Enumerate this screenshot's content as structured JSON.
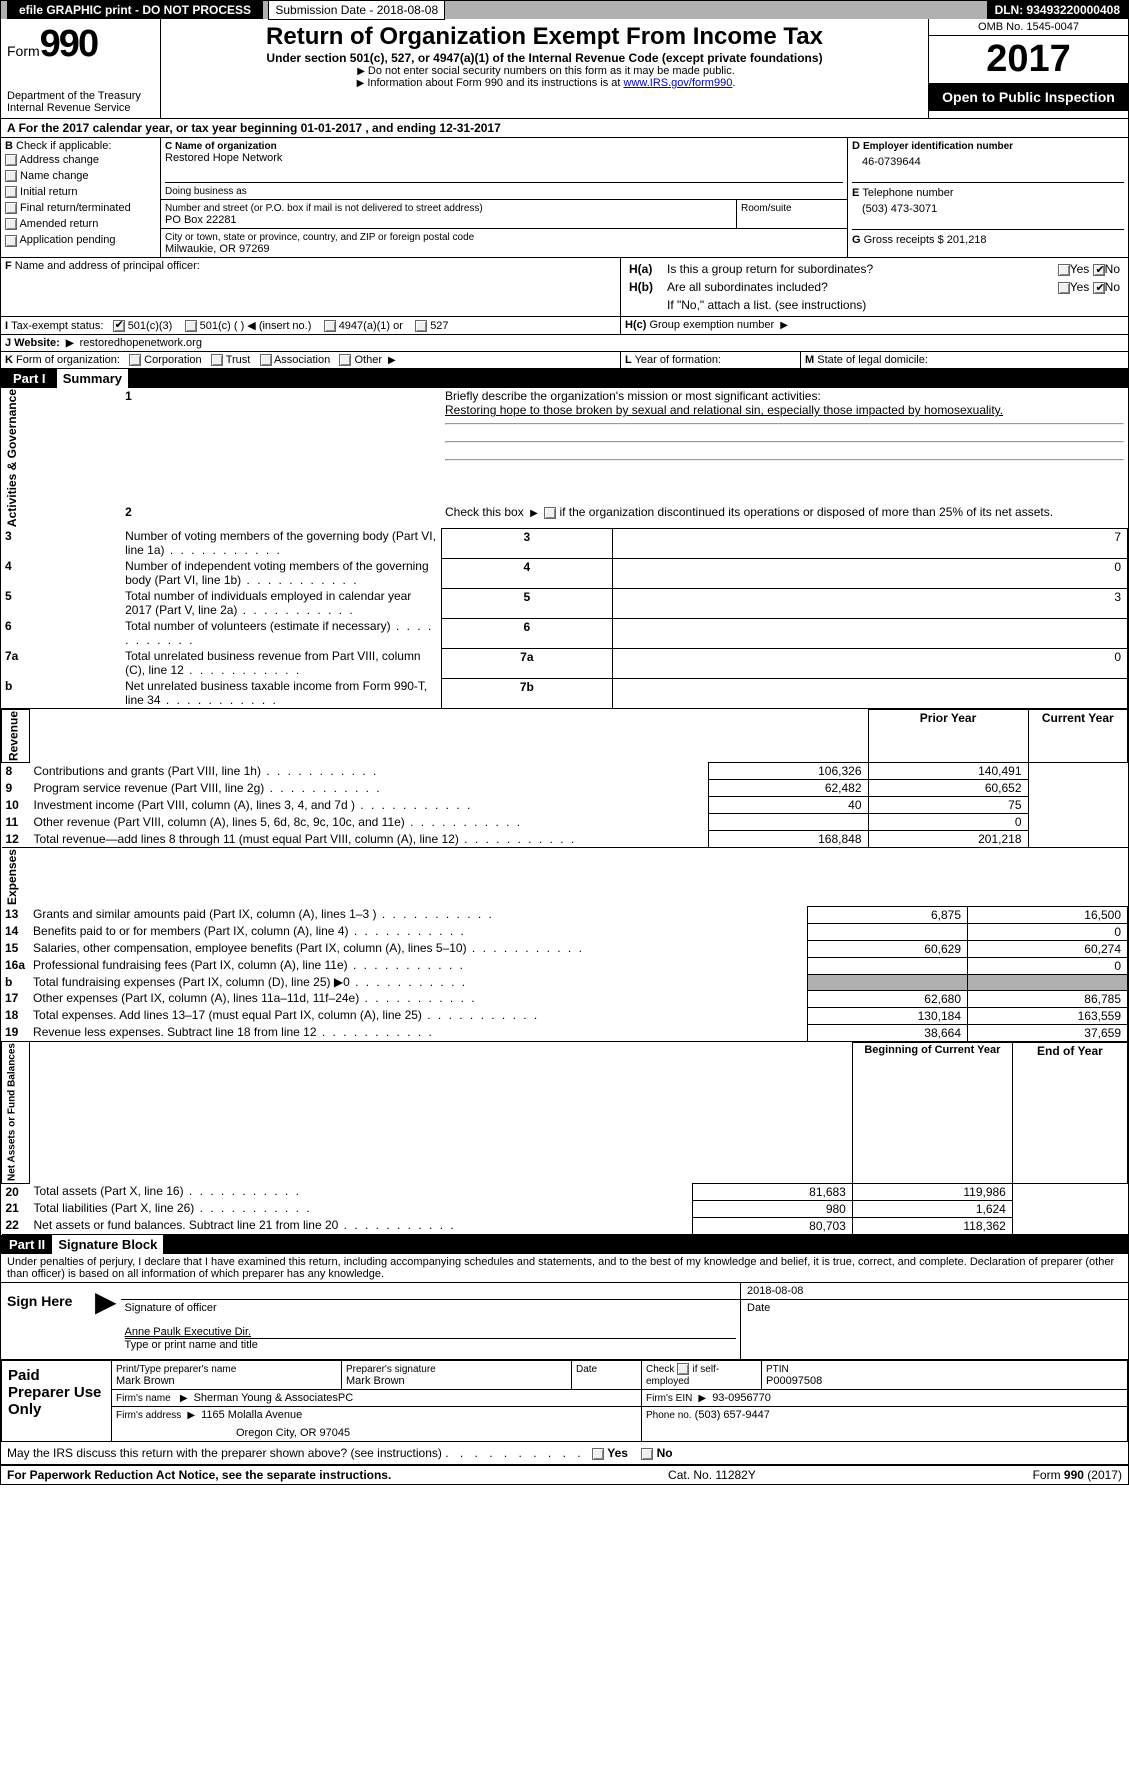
{
  "top": {
    "efile": "efile GRAPHIC print - DO NOT PROCESS",
    "submission": "Submission Date - 2018-08-08",
    "dln": "DLN: 93493220000408"
  },
  "hdr": {
    "form": "Form",
    "num": "990",
    "dept": "Department of the Treasury\nInternal Revenue Service",
    "title": "Return of Organization Exempt From Income Tax",
    "sub": "Under section 501(c), 527, or 4947(a)(1) of the Internal Revenue Code (except private foundations)",
    "note1": "Do not enter social security numbers on this form as it may be made public.",
    "note2": "Information about Form 990 and its instructions is at ",
    "link": "www.IRS.gov/form990",
    "omb": "OMB No. 1545-0047",
    "year": "2017",
    "inspect": "Open to Public Inspection"
  },
  "A": {
    "text": "For the 2017 calendar year, or tax year beginning 01-01-2017   , and ending 12-31-2017"
  },
  "B": {
    "label": "Check if applicable:",
    "opts": [
      "Address change",
      "Name change",
      "Initial return",
      "Final return/terminated",
      "Amended return",
      "Application pending"
    ]
  },
  "C": {
    "nameLbl": "Name of organization",
    "name": "Restored Hope Network",
    "dba": "Doing business as",
    "addrLbl": "Number and street (or P.O. box if mail is not delivered to street address)",
    "addr": "PO Box 22281",
    "room": "Room/suite",
    "cityLbl": "City or town, state or province, country, and ZIP or foreign postal code",
    "city": "Milwaukie, OR  97269"
  },
  "D": {
    "lbl": "Employer identification number",
    "val": "46-0739644"
  },
  "E": {
    "lbl": "Telephone number",
    "val": "(503) 473-3071"
  },
  "G": {
    "lbl": "Gross receipts $",
    "val": "201,218"
  },
  "F": {
    "lbl": "Name and address of principal officer:"
  },
  "H": {
    "a": "Is this a group return for subordinates?",
    "b": "Are all subordinates included?",
    "bnote": "If \"No,\" attach a list. (see instructions)",
    "c": "Group exemption number",
    "yes": "Yes",
    "no": "No"
  },
  "I": {
    "lbl": "Tax-exempt status:",
    "o1": "501(c)(3)",
    "o2": "501(c) (  )",
    "ins": "(insert no.)",
    "o3": "4947(a)(1) or",
    "o4": "527"
  },
  "J": {
    "lbl": "Website:",
    "val": "restoredhopenetwork.org"
  },
  "K": {
    "lbl": "Form of organization:",
    "o1": "Corporation",
    "o2": "Trust",
    "o3": "Association",
    "o4": "Other"
  },
  "L": {
    "lbl": "Year of formation:"
  },
  "M": {
    "lbl": "State of legal domicile:"
  },
  "P1": {
    "title": "Part I",
    "name": "Summary",
    "side1": "Activities & Governance",
    "side2": "Revenue",
    "side3": "Expenses",
    "side4": "Net Assets or Fund Balances",
    "l1": "Briefly describe the organization's mission or most significant activities:",
    "l1v": "Restoring hope to those broken by sexual and relational sin, especially those impacted by homosexuality.",
    "l2": "Check this box",
    "l2b": "if the organization discontinued its operations or disposed of more than 25% of its net assets.",
    "rows_gov": [
      {
        "n": "3",
        "d": "Number of voting members of the governing body (Part VI, line 1a)",
        "v": "7"
      },
      {
        "n": "4",
        "d": "Number of independent voting members of the governing body (Part VI, line 1b)",
        "v": "0"
      },
      {
        "n": "5",
        "d": "Total number of individuals employed in calendar year 2017 (Part V, line 2a)",
        "v": "3"
      },
      {
        "n": "6",
        "d": "Total number of volunteers (estimate if necessary)",
        "v": ""
      },
      {
        "n": "7a",
        "d": "Total unrelated business revenue from Part VIII, column (C), line 12",
        "v": "0"
      },
      {
        "n": "b",
        "d": "Net unrelated business taxable income from Form 990-T, line 34",
        "v": "",
        "nb": "7b"
      }
    ],
    "yrhdr": {
      "p": "Prior Year",
      "c": "Current Year"
    },
    "rows_rev": [
      {
        "n": "8",
        "d": "Contributions and grants (Part VIII, line 1h)",
        "p": "106,326",
        "c": "140,491"
      },
      {
        "n": "9",
        "d": "Program service revenue (Part VIII, line 2g)",
        "p": "62,482",
        "c": "60,652"
      },
      {
        "n": "10",
        "d": "Investment income (Part VIII, column (A), lines 3, 4, and 7d )",
        "p": "40",
        "c": "75"
      },
      {
        "n": "11",
        "d": "Other revenue (Part VIII, column (A), lines 5, 6d, 8c, 9c, 10c, and 11e)",
        "p": "",
        "c": "0"
      },
      {
        "n": "12",
        "d": "Total revenue—add lines 8 through 11 (must equal Part VIII, column (A), line 12)",
        "p": "168,848",
        "c": "201,218"
      }
    ],
    "rows_exp": [
      {
        "n": "13",
        "d": "Grants and similar amounts paid (Part IX, column (A), lines 1–3 )",
        "p": "6,875",
        "c": "16,500"
      },
      {
        "n": "14",
        "d": "Benefits paid to or for members (Part IX, column (A), line 4)",
        "p": "",
        "c": "0"
      },
      {
        "n": "15",
        "d": "Salaries, other compensation, employee benefits (Part IX, column (A), lines 5–10)",
        "p": "60,629",
        "c": "60,274"
      },
      {
        "n": "16a",
        "d": "Professional fundraising fees (Part IX, column (A), line 11e)",
        "p": "",
        "c": "0"
      },
      {
        "n": "b",
        "d": "Total fundraising expenses (Part IX, column (D), line 25) ▶0",
        "p": "shade",
        "c": "shade"
      },
      {
        "n": "17",
        "d": "Other expenses (Part IX, column (A), lines 11a–11d, 11f–24e)",
        "p": "62,680",
        "c": "86,785"
      },
      {
        "n": "18",
        "d": "Total expenses. Add lines 13–17 (must equal Part IX, column (A), line 25)",
        "p": "130,184",
        "c": "163,559"
      },
      {
        "n": "19",
        "d": "Revenue less expenses. Subtract line 18 from line 12",
        "p": "38,664",
        "c": "37,659"
      }
    ],
    "yrhdr2": {
      "p": "Beginning of Current Year",
      "c": "End of Year"
    },
    "rows_net": [
      {
        "n": "20",
        "d": "Total assets (Part X, line 16)",
        "p": "81,683",
        "c": "119,986"
      },
      {
        "n": "21",
        "d": "Total liabilities (Part X, line 26)",
        "p": "980",
        "c": "1,624"
      },
      {
        "n": "22",
        "d": "Net assets or fund balances. Subtract line 21 from line 20",
        "p": "80,703",
        "c": "118,362"
      }
    ]
  },
  "P2": {
    "title": "Part II",
    "name": "Signature Block",
    "decl": "Under penalties of perjury, I declare that I have examined this return, including accompanying schedules and statements, and to the best of my knowledge and belief, it is true, correct, and complete. Declaration of preparer (other than officer) is based on all information of which preparer has any knowledge.",
    "sign": "Sign Here",
    "sigoff": "Signature of officer",
    "date": "Date",
    "sigdate": "2018-08-08",
    "typed": "Anne Paulk  Executive Dir.",
    "typedLbl": "Type or print name and title",
    "paid": "Paid Preparer Use Only",
    "prep_name_lbl": "Print/Type preparer's name",
    "prep_name": "Mark Brown",
    "prep_sig_lbl": "Preparer's signature",
    "prep_sig": "Mark Brown",
    "prep_date_lbl": "Date",
    "self_lbl": "Check",
    "self_if": "if self-employed",
    "ptin_lbl": "PTIN",
    "ptin": "P00097508",
    "firm_name_lbl": "Firm's name",
    "firm_name": "Sherman Young & AssociatesPC",
    "firm_ein_lbl": "Firm's EIN",
    "firm_ein": "93-0956770",
    "firm_addr_lbl": "Firm's address",
    "firm_addr": "1165 Molalla Avenue",
    "firm_city": "Oregon City, OR  97045",
    "phone_lbl": "Phone no.",
    "phone": "(503) 657-9447",
    "discuss": "May the IRS discuss this return with the preparer shown above? (see instructions)",
    "yes": "Yes",
    "no": "No"
  },
  "footer": {
    "pra": "For Paperwork Reduction Act Notice, see the separate instructions.",
    "cat": "Cat. No. 11282Y",
    "form": "Form 990 (2017)"
  }
}
